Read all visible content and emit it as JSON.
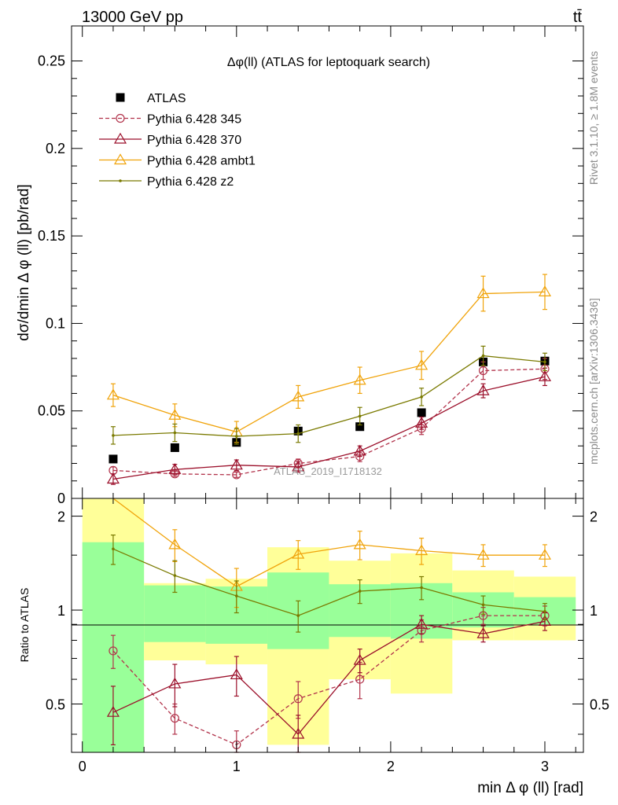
{
  "header": {
    "left": "13000 GeV pp",
    "right": "tt̄"
  },
  "side_labels": {
    "rivet": "Rivet 3.1.10, ≥ 1.8M events",
    "mcplots": "mcplots.cern.ch [arXiv:1306.3436]"
  },
  "watermark": "ATLAS_2019_I1718132",
  "colors": {
    "atlas": "#000000",
    "p345": "#b2334b",
    "p370": "#9b0f2a",
    "ambt1": "#f0a30a",
    "z2": "#7a7a00",
    "band_inner": "#99ff99",
    "band_outer": "#ffff99"
  },
  "chart_data": [
    {
      "type": "scatter",
      "title": "Δφ(ll) (ATLAS for leptoquark search)",
      "ylabel": "dσ/dmin Δ φ (ll) [pb/rad]",
      "xlabel": "",
      "xlim": [
        -0.07,
        3.25
      ],
      "ylim": [
        0,
        0.27
      ],
      "yticks": [
        0,
        0.05,
        0.1,
        0.15,
        0.2,
        0.25
      ],
      "ytick_labels": [
        "0",
        "0.05",
        "0.1",
        "0.15",
        "0.2",
        "0.25"
      ],
      "legend_position": "top-left",
      "x": [
        0.2,
        0.6,
        1.0,
        1.4,
        1.8,
        2.2,
        2.6,
        3.0
      ],
      "series": [
        {
          "name": "ATLAS",
          "key": "atlas",
          "marker": "square",
          "values": [
            0.0225,
            0.029,
            0.032,
            0.0385,
            0.041,
            0.049,
            0.078,
            0.0785
          ]
        },
        {
          "name": "Pythia 6.428 345",
          "key": "p345",
          "marker": "circle",
          "dashed": true,
          "values": [
            0.016,
            0.014,
            0.0135,
            0.02,
            0.024,
            0.04,
            0.073,
            0.074
          ],
          "errors": [
            0.002,
            0.0015,
            0.0015,
            0.0025,
            0.003,
            0.0035,
            0.005,
            0.006
          ]
        },
        {
          "name": "Pythia 6.428 370",
          "key": "p370",
          "marker": "triangle",
          "values": [
            0.011,
            0.0165,
            0.019,
            0.018,
            0.027,
            0.043,
            0.0615,
            0.0695
          ],
          "errors": [
            0.003,
            0.003,
            0.003,
            0.003,
            0.003,
            0.0035,
            0.004,
            0.005
          ]
        },
        {
          "name": "Pythia 6.428 ambt1",
          "key": "ambt1",
          "marker": "triangle",
          "values": [
            0.059,
            0.0475,
            0.038,
            0.058,
            0.0675,
            0.076,
            0.117,
            0.118
          ],
          "errors": [
            0.0065,
            0.0065,
            0.006,
            0.0065,
            0.0075,
            0.008,
            0.01,
            0.01
          ]
        },
        {
          "name": "Pythia 6.428 z2",
          "key": "z2",
          "marker": "dot",
          "values": [
            0.036,
            0.0375,
            0.0355,
            0.037,
            0.047,
            0.058,
            0.0815,
            0.078
          ],
          "errors": [
            0.005,
            0.005,
            0.0045,
            0.005,
            0.005,
            0.005,
            0.0055,
            0.005
          ]
        }
      ]
    },
    {
      "type": "line",
      "ylabel": "Ratio to ATLAS",
      "xlabel": "min Δ φ (ll) [rad]",
      "xlim": [
        -0.07,
        3.25
      ],
      "ylim": [
        0.35,
        2.28
      ],
      "yscale": "log",
      "xticks": [
        0,
        1,
        2,
        3
      ],
      "xtick_labels": [
        "0",
        "1",
        "2",
        "3"
      ],
      "yticks": [
        0.5,
        1,
        2
      ],
      "ytick_labels": [
        "0.5",
        "1",
        "2"
      ],
      "x": [
        0.2,
        0.6,
        1.0,
        1.4,
        1.8,
        2.2,
        2.6,
        3.0
      ],
      "bands": [
        {
          "x0": 0.0,
          "x1": 0.4,
          "inner": [
            0.35,
            1.65
          ],
          "outer": [
            0.35,
            2.28
          ]
        },
        {
          "x0": 0.4,
          "x1": 0.8,
          "inner": [
            0.79,
            1.2
          ],
          "outer": [
            0.69,
            1.22
          ]
        },
        {
          "x0": 0.8,
          "x1": 1.2,
          "inner": [
            0.78,
            1.19
          ],
          "outer": [
            0.67,
            1.26
          ]
        },
        {
          "x0": 1.2,
          "x1": 1.6,
          "inner": [
            0.75,
            1.32
          ],
          "outer": [
            0.37,
            1.59
          ]
        },
        {
          "x0": 1.6,
          "x1": 2.0,
          "inner": [
            0.82,
            1.21
          ],
          "outer": [
            0.6,
            1.44
          ]
        },
        {
          "x0": 2.0,
          "x1": 2.4,
          "inner": [
            0.81,
            1.22
          ],
          "outer": [
            0.54,
            1.52
          ]
        },
        {
          "x0": 2.4,
          "x1": 2.8,
          "inner": [
            0.88,
            1.14
          ],
          "outer": [
            0.8,
            1.34
          ]
        },
        {
          "x0": 2.8,
          "x1": 3.2,
          "inner": [
            0.9,
            1.1
          ],
          "outer": [
            0.8,
            1.28
          ]
        }
      ],
      "series": [
        {
          "name": "Pythia 6.428 345",
          "key": "p345",
          "marker": "circle",
          "dashed": true,
          "values": [
            0.74,
            0.45,
            0.37,
            0.52,
            0.6,
            0.86,
            0.96,
            0.96
          ],
          "errors": [
            0.09,
            0.05,
            0.04,
            0.07,
            0.08,
            0.07,
            0.06,
            0.07
          ]
        },
        {
          "name": "Pythia 6.428 370",
          "key": "p370",
          "marker": "triangle",
          "values": [
            0.47,
            0.58,
            0.62,
            0.4,
            0.69,
            0.9,
            0.84,
            0.92
          ],
          "errors": [
            0.1,
            0.09,
            0.09,
            0.06,
            0.06,
            0.06,
            0.05,
            0.06
          ]
        },
        {
          "name": "Pythia 6.428 ambt1",
          "key": "ambt1",
          "marker": "triangle",
          "values": [
            2.55,
            1.62,
            1.19,
            1.51,
            1.62,
            1.55,
            1.5,
            1.5
          ],
          "errors": [
            0.3,
            0.19,
            0.17,
            0.16,
            0.17,
            0.15,
            0.12,
            0.12
          ]
        },
        {
          "name": "Pythia 6.428 z2",
          "key": "z2",
          "marker": "dot",
          "values": [
            1.57,
            1.29,
            1.11,
            0.96,
            1.15,
            1.18,
            1.04,
            0.99
          ],
          "errors": [
            0.17,
            0.15,
            0.13,
            0.11,
            0.1,
            0.1,
            0.07,
            0.06
          ]
        }
      ]
    }
  ]
}
